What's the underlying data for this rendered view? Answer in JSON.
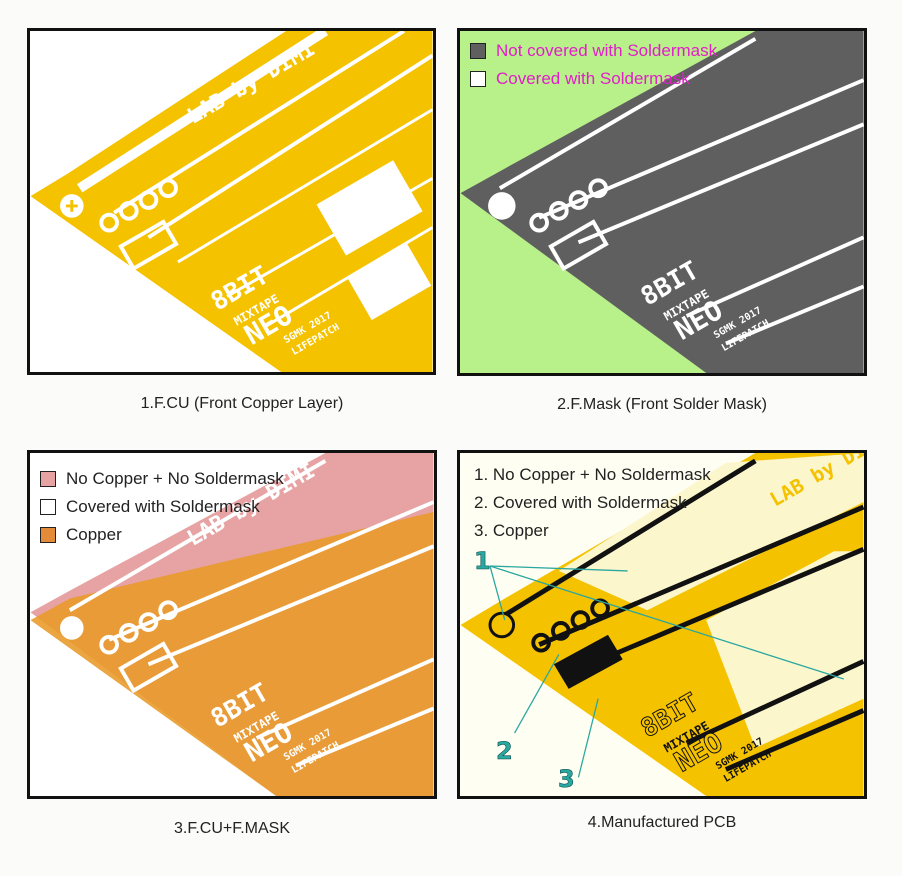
{
  "panels": [
    {
      "id": "p1",
      "caption": "1.F.CU (Front Copper Layer)",
      "board_text": [
        "LAB by DIMI",
        "8BIT",
        "MIXTAPE",
        "NEO",
        "SGMK 2017",
        "LIFEPATCH"
      ]
    },
    {
      "id": "p2",
      "caption": "2.F.Mask (Front Solder Mask)",
      "legend": [
        {
          "label": "Not covered with Soldermask",
          "swatch": "#5f5f5f"
        },
        {
          "label": "Covered with Soldermask",
          "swatch": "#ffffff"
        }
      ],
      "legend_text_color": "#e21ec9",
      "board_text": [
        "8BIT",
        "MIXTAPE",
        "NEO",
        "SGMK 2017",
        "LIFEPATCH"
      ]
    },
    {
      "id": "p3",
      "caption": "3.F.CU+F.MASK",
      "legend": [
        {
          "label": "No Copper + No Soldermask",
          "swatch": "#e7a3a3"
        },
        {
          "label": "Covered with Soldermask",
          "swatch": "#ffffff"
        },
        {
          "label": "Copper",
          "swatch": "#e48b3a"
        }
      ],
      "board_text": [
        "LAB by DIMI",
        "8BIT",
        "MIXTAPE",
        "NEO",
        "SGMK 2017",
        "LIFEPATCH"
      ]
    },
    {
      "id": "p4",
      "caption": "4.Manufactured PCB",
      "legend": [
        {
          "label": "1. No Copper + No Soldermask"
        },
        {
          "label": "2. Covered with Soldermask"
        },
        {
          "label": "3. Copper"
        }
      ],
      "callouts": [
        "1",
        "2",
        "3"
      ],
      "board_text": [
        "LAB by DIMI",
        "8BIT",
        "MIXTAPE",
        "NEO",
        "SGMK 2017",
        "LIFEPATCH"
      ]
    }
  ],
  "colors": {
    "copper": "#f5c200",
    "mask_green": "#b8f08a",
    "mask_grey": "#5f5f5f",
    "pink": "#e7a3a3",
    "orange": "#e48b3a",
    "callout": "#2aa7a0"
  }
}
